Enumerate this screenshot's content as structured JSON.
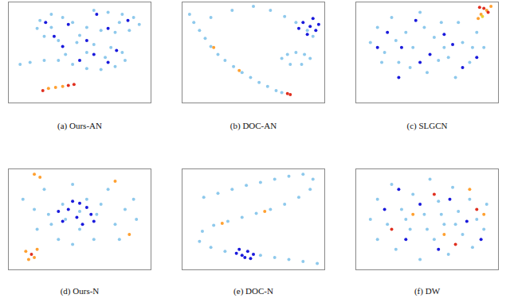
{
  "chart_data": [
    {
      "type": "scatter",
      "title": "(a) Ours-AN",
      "xlim": [
        0,
        100
      ],
      "ylim": [
        0,
        100
      ],
      "tick_labels": false,
      "grid": false,
      "series": [
        {
          "color": "#8ec9ec",
          "x": [
            60,
            70,
            80,
            88,
            92,
            85,
            75,
            65,
            55,
            45,
            38,
            30,
            22,
            20,
            25,
            35,
            48,
            60,
            72,
            80,
            82,
            75,
            65,
            55,
            45,
            35,
            25,
            15,
            8,
            40,
            55,
            68,
            50,
            78,
            30
          ],
          "y": [
            92,
            90,
            88,
            85,
            78,
            72,
            70,
            72,
            75,
            80,
            85,
            88,
            82,
            74,
            66,
            62,
            60,
            58,
            55,
            50,
            42,
            36,
            33,
            34,
            38,
            42,
            42,
            40,
            38,
            48,
            50,
            45,
            67,
            80,
            75
          ]
        },
        {
          "color": "#1a1adc",
          "x": [
            62,
            84,
            70,
            42,
            26,
            32,
            55,
            76,
            70,
            50,
            60,
            38
          ],
          "y": [
            88,
            82,
            74,
            78,
            80,
            66,
            62,
            52,
            40,
            42,
            48,
            56
          ]
        },
        {
          "color": "#ffa030",
          "x": [
            28,
            33,
            38
          ],
          "y": [
            14,
            15,
            16
          ]
        },
        {
          "color": "#e03020",
          "x": [
            42,
            46,
            24
          ],
          "y": [
            17,
            18,
            12
          ]
        }
      ]
    },
    {
      "type": "scatter",
      "title": "(b) DOC-AN",
      "xlim": [
        0,
        100
      ],
      "ylim": [
        0,
        100
      ],
      "tick_labels": false,
      "grid": false,
      "series": [
        {
          "color": "#8ec9ec",
          "x": [
            5,
            8,
            12,
            16,
            20,
            25,
            30,
            36,
            42,
            48,
            54,
            60,
            66,
            70,
            20,
            35,
            50,
            62,
            72,
            80,
            88,
            92,
            70,
            74,
            80,
            86,
            90,
            76,
            84
          ],
          "y": [
            88,
            80,
            72,
            64,
            56,
            48,
            42,
            36,
            30,
            25,
            20,
            16,
            12,
            10,
            85,
            92,
            96,
            92,
            86,
            80,
            72,
            66,
            44,
            48,
            50,
            48,
            44,
            38,
            38
          ]
        },
        {
          "color": "#1a1adc",
          "x": [
            85,
            90,
            94,
            88,
            92,
            96,
            82
          ],
          "y": [
            80,
            76,
            72,
            68,
            84,
            78,
            74
          ]
        },
        {
          "color": "#ffa030",
          "x": [
            22,
            40
          ],
          "y": [
            55,
            32
          ]
        },
        {
          "color": "#e03020",
          "x": [
            74,
            76
          ],
          "y": [
            9,
            8
          ]
        }
      ]
    },
    {
      "type": "scatter",
      "title": "(c) SLGCN",
      "xlim": [
        0,
        100
      ],
      "ylim": [
        0,
        100
      ],
      "tick_labels": false,
      "grid": false,
      "series": [
        {
          "color": "#8ec9ec",
          "x": [
            10,
            15,
            20,
            25,
            30,
            35,
            40,
            45,
            50,
            55,
            60,
            65,
            70,
            75,
            80,
            85,
            90,
            28,
            48,
            62,
            72,
            38,
            58,
            18,
            82
          ],
          "y": [
            60,
            75,
            50,
            85,
            40,
            70,
            55,
            90,
            30,
            65,
            80,
            45,
            25,
            60,
            40,
            70,
            55,
            62,
            75,
            55,
            80,
            35,
            42,
            40,
            55
          ]
        },
        {
          "color": "#1a1adc",
          "x": [
            22,
            32,
            42,
            52,
            62,
            75,
            30,
            68,
            45,
            85,
            15
          ],
          "y": [
            70,
            55,
            82,
            48,
            68,
            35,
            25,
            58,
            40,
            45,
            55
          ]
        },
        {
          "color": "#ffa030",
          "x": [
            88,
            92,
            86,
            95
          ],
          "y": [
            88,
            92,
            84,
            96
          ]
        },
        {
          "color": "#e03020",
          "x": [
            90,
            93,
            87
          ],
          "y": [
            94,
            90,
            95
          ]
        },
        {
          "color": "#e8d030",
          "x": [
            89
          ],
          "y": [
            86
          ]
        }
      ]
    },
    {
      "type": "scatter",
      "title": "(d) Ours-N",
      "xlim": [
        0,
        100
      ],
      "ylim": [
        0,
        100
      ],
      "tick_labels": false,
      "grid": false,
      "series": [
        {
          "color": "#8ec9ec",
          "x": [
            10,
            18,
            25,
            30,
            38,
            45,
            50,
            55,
            62,
            70,
            75,
            82,
            88,
            35,
            45,
            60,
            90,
            20,
            28,
            65,
            78,
            50,
            40
          ],
          "y": [
            70,
            60,
            80,
            45,
            65,
            85,
            40,
            70,
            55,
            80,
            45,
            60,
            70,
            30,
            25,
            30,
            50,
            40,
            55,
            65,
            30,
            58,
            50
          ]
        },
        {
          "color": "#1a1adc",
          "x": [
            42,
            48,
            55,
            38,
            52,
            58,
            45,
            35,
            60,
            50
          ],
          "y": [
            60,
            52,
            62,
            48,
            45,
            55,
            68,
            58,
            48,
            66
          ]
        },
        {
          "color": "#ffa030",
          "x": [
            18,
            22,
            12,
            18,
            20,
            14,
            75,
            85
          ],
          "y": [
            95,
            92,
            18,
            12,
            20,
            10,
            88,
            35
          ]
        },
        {
          "color": "#e03020",
          "x": [
            16
          ],
          "y": [
            15
          ]
        }
      ]
    },
    {
      "type": "scatter",
      "title": "(e) DOC-N",
      "xlim": [
        0,
        100
      ],
      "ylim": [
        0,
        100
      ],
      "tick_labels": false,
      "grid": false,
      "series": [
        {
          "color": "#8ec9ec",
          "x": [
            15,
            25,
            35,
            45,
            55,
            65,
            75,
            85,
            92,
            90,
            82,
            72,
            62,
            52,
            42,
            32,
            22,
            14,
            12,
            20,
            30,
            55,
            65,
            75,
            85,
            95
          ],
          "y": [
            72,
            76,
            80,
            84,
            87,
            90,
            93,
            95,
            90,
            80,
            72,
            65,
            60,
            56,
            52,
            48,
            44,
            38,
            28,
            22,
            18,
            14,
            12,
            10,
            8,
            6
          ]
        },
        {
          "color": "#1a1adc",
          "x": [
            38,
            42,
            46,
            50,
            44,
            40,
            48
          ],
          "y": [
            16,
            14,
            18,
            15,
            12,
            20,
            11
          ]
        },
        {
          "color": "#ffa030",
          "x": [
            58,
            28
          ],
          "y": [
            58,
            46
          ]
        }
      ]
    },
    {
      "type": "scatter",
      "title": "(f) DW",
      "xlim": [
        0,
        100
      ],
      "ylim": [
        0,
        100
      ],
      "tick_labels": false,
      "grid": false,
      "series": [
        {
          "color": "#8ec9ec",
          "x": [
            10,
            15,
            15,
            22,
            25,
            28,
            32,
            38,
            40,
            45,
            48,
            52,
            55,
            58,
            62,
            65,
            68,
            72,
            75,
            80,
            82,
            85,
            90,
            92,
            35,
            60,
            50,
            70
          ],
          "y": [
            50,
            30,
            70,
            45,
            85,
            20,
            60,
            40,
            75,
            10,
            55,
            90,
            30,
            68,
            45,
            15,
            82,
            58,
            35,
            70,
            22,
            50,
            40,
            65,
            50,
            55,
            40,
            45
          ]
        },
        {
          "color": "#1a1adc",
          "x": [
            20,
            35,
            45,
            58,
            66,
            78,
            88,
            30
          ],
          "y": [
            60,
            30,
            65,
            20,
            70,
            48,
            30,
            80
          ]
        },
        {
          "color": "#e03020",
          "x": [
            25,
            55,
            70,
            85
          ],
          "y": [
            40,
            75,
            25,
            60
          ]
        },
        {
          "color": "#ffa030",
          "x": [
            40,
            62,
            80,
            90
          ],
          "y": [
            55,
            35,
            80,
            55
          ]
        }
      ]
    }
  ]
}
